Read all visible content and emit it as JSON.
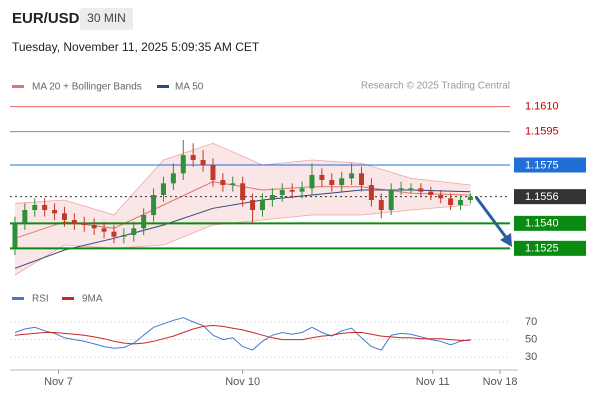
{
  "chart_data": [
    {
      "type": "candlestick",
      "title": "EUR/USD",
      "timeframe": "30 MIN",
      "subtitle": "Tuesday, November 11, 2025 5:09:35 AM CET",
      "source": "Research © 2025 Trading Central",
      "x": [
        0,
        1,
        2,
        3,
        4,
        5,
        6,
        7,
        8,
        9,
        10,
        11,
        12,
        13,
        14,
        15,
        16,
        17,
        18,
        19,
        20,
        21,
        22,
        23,
        24,
        25,
        26,
        27,
        28,
        29,
        30,
        31,
        32,
        33,
        34,
        35,
        36,
        37,
        38,
        39,
        40,
        41,
        42,
        43,
        44,
        45,
        46
      ],
      "open": [
        1.1525,
        1.154,
        1.1548,
        1.1551,
        1.1548,
        1.1546,
        1.1542,
        1.154,
        1.1539,
        1.1537,
        1.1535,
        1.1532,
        1.1533,
        1.1537,
        1.1545,
        1.1557,
        1.1564,
        1.157,
        1.1581,
        1.1578,
        1.1575,
        1.1566,
        1.1563,
        1.1564,
        1.1554,
        1.1548,
        1.1554,
        1.1557,
        1.156,
        1.1559,
        1.1561,
        1.1569,
        1.1566,
        1.1563,
        1.1567,
        1.157,
        1.1563,
        1.1554,
        1.1548,
        1.156,
        1.1561,
        1.1561,
        1.1559,
        1.1557,
        1.1555,
        1.1551,
        1.1554
      ],
      "high": [
        1.1544,
        1.1552,
        1.1555,
        1.1555,
        1.1552,
        1.155,
        1.1546,
        1.1544,
        1.1543,
        1.1541,
        1.1539,
        1.1537,
        1.1541,
        1.1549,
        1.1561,
        1.1568,
        1.1576,
        1.159,
        1.1588,
        1.1584,
        1.1579,
        1.157,
        1.1568,
        1.1568,
        1.1558,
        1.1558,
        1.1561,
        1.1564,
        1.1564,
        1.1565,
        1.1576,
        1.1573,
        1.157,
        1.1571,
        1.1576,
        1.1574,
        1.1567,
        1.1558,
        1.1564,
        1.1565,
        1.1564,
        1.1564,
        1.1562,
        1.156,
        1.1558,
        1.1557,
        1.1558
      ],
      "low": [
        1.1521,
        1.1536,
        1.1544,
        1.1544,
        1.1542,
        1.1538,
        1.1536,
        1.1535,
        1.1533,
        1.1531,
        1.1528,
        1.1528,
        1.1529,
        1.1533,
        1.1541,
        1.1553,
        1.156,
        1.1566,
        1.1574,
        1.1571,
        1.1562,
        1.1559,
        1.1559,
        1.155,
        1.154,
        1.1544,
        1.155,
        1.1553,
        1.1555,
        1.1555,
        1.1557,
        1.1562,
        1.1559,
        1.1559,
        1.1563,
        1.1559,
        1.155,
        1.1543,
        1.1545,
        1.1557,
        1.1558,
        1.1556,
        1.1554,
        1.1552,
        1.1548,
        1.1548,
        1.1552
      ],
      "close": [
        1.154,
        1.1548,
        1.1551,
        1.1548,
        1.1546,
        1.1542,
        1.154,
        1.1539,
        1.1537,
        1.1535,
        1.1532,
        1.1533,
        1.1537,
        1.1545,
        1.1557,
        1.1564,
        1.157,
        1.1581,
        1.1578,
        1.1575,
        1.1566,
        1.1563,
        1.1564,
        1.1554,
        1.1548,
        1.1554,
        1.1557,
        1.156,
        1.1559,
        1.1561,
        1.1569,
        1.1566,
        1.1563,
        1.1567,
        1.157,
        1.1563,
        1.1554,
        1.1548,
        1.156,
        1.1561,
        1.1561,
        1.1559,
        1.1557,
        1.1555,
        1.1551,
        1.1554,
        1.1556
      ],
      "up_color": "#2f8f3a",
      "down_color": "#c0392b",
      "overlays": [
        {
          "name": "MA 20 + Bollinger Bands",
          "color": "#e57373",
          "x": [
            0,
            5,
            10,
            15,
            20,
            25,
            30,
            35,
            40,
            46
          ],
          "upper": [
            1.1552,
            1.1554,
            1.1545,
            1.1578,
            1.1588,
            1.1575,
            1.1578,
            1.1576,
            1.1567,
            1.1563
          ],
          "middle": [
            1.1531,
            1.1541,
            1.1537,
            1.1551,
            1.1565,
            1.156,
            1.1562,
            1.1562,
            1.1558,
            1.1557
          ],
          "lower": [
            1.1509,
            1.1527,
            1.1525,
            1.1527,
            1.1539,
            1.1542,
            1.1545,
            1.1545,
            1.1548,
            1.1551
          ]
        },
        {
          "name": "MA 50",
          "color": "#2c4a7c",
          "x": [
            0,
            5,
            10,
            15,
            20,
            25,
            30,
            35,
            40,
            46
          ],
          "values": [
            1.1513,
            1.1524,
            1.1531,
            1.1539,
            1.1549,
            1.1554,
            1.1557,
            1.156,
            1.156,
            1.1559
          ]
        }
      ],
      "levels": [
        {
          "value": 1.161,
          "label": "1.1610",
          "color": "#e06666",
          "boxed": false,
          "dashed": false
        },
        {
          "value": 1.1595,
          "label": "1.1595",
          "color": "#e06666",
          "boxed": false,
          "dashed": false
        },
        {
          "value": 1.1575,
          "label": "1.1575",
          "color": "#1f6fd6",
          "boxed": true,
          "dashed": false
        },
        {
          "value": 1.1556,
          "label": "1.1556",
          "color": "#333333",
          "boxed": true,
          "dashed": true
        },
        {
          "value": 1.154,
          "label": "1.1540",
          "color": "#0b8a12",
          "boxed": true,
          "dashed": false
        },
        {
          "value": 1.1525,
          "label": "1.1525",
          "color": "#0b8a12",
          "boxed": true,
          "dashed": false
        }
      ],
      "xlim": [
        -0.5,
        50
      ],
      "ylim": [
        1.1503,
        1.1617
      ]
    },
    {
      "type": "line",
      "x": [
        0,
        1,
        2,
        3,
        4,
        5,
        6,
        7,
        8,
        9,
        10,
        11,
        12,
        13,
        14,
        15,
        16,
        17,
        18,
        19,
        20,
        21,
        22,
        23,
        24,
        25,
        26,
        27,
        28,
        29,
        30,
        31,
        32,
        33,
        34,
        35,
        36,
        37,
        38,
        39,
        40,
        41,
        42,
        43,
        44,
        45,
        46
      ],
      "series": [
        {
          "name": "RSI",
          "color": "#4a78c9",
          "values": [
            58,
            62,
            64,
            60,
            57,
            52,
            50,
            48,
            45,
            42,
            40,
            41,
            46,
            55,
            64,
            68,
            72,
            75,
            70,
            66,
            55,
            50,
            52,
            42,
            38,
            48,
            55,
            58,
            56,
            58,
            64,
            58,
            54,
            60,
            63,
            52,
            42,
            38,
            55,
            57,
            56,
            53,
            50,
            48,
            44,
            48,
            50
          ]
        },
        {
          "name": "9MA",
          "color": "#c62828",
          "values": [
            55,
            56,
            57,
            58,
            58,
            57,
            56,
            55,
            53,
            51,
            48,
            46,
            45,
            46,
            48,
            51,
            54,
            58,
            62,
            65,
            66,
            65,
            63,
            61,
            58,
            55,
            52,
            50,
            50,
            50,
            52,
            54,
            55,
            57,
            58,
            58,
            56,
            54,
            53,
            52,
            52,
            51,
            51,
            51,
            50,
            49,
            49
          ]
        }
      ],
      "xlim": [
        -0.5,
        50
      ],
      "ylim": [
        21,
        78
      ],
      "yticks": [
        30,
        50,
        70
      ],
      "xticks": [
        {
          "value": 4.4,
          "label": "Nov 7"
        },
        {
          "value": 23,
          "label": "Nov 10"
        },
        {
          "value": 42.2,
          "label": "Nov 11"
        },
        {
          "value": 49,
          "label": "Nov 18"
        }
      ]
    }
  ]
}
